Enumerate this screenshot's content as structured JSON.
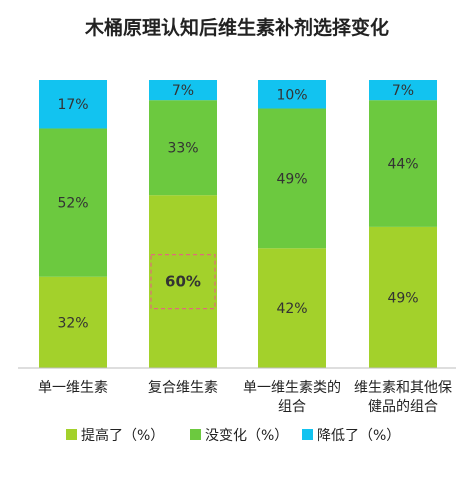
{
  "chart_data": {
    "type": "bar",
    "stacked": true,
    "percent": true,
    "title": "木桶原理认知后维生素补剂选择变化",
    "categories": [
      [
        "单一维生素"
      ],
      [
        "复合维生素"
      ],
      [
        "单一维生素类的",
        "组合"
      ],
      [
        "维生素和其他保",
        "健品的组合"
      ]
    ],
    "series": [
      {
        "name": "提高了（%）",
        "color": "#a3d12b",
        "values": [
          32,
          60,
          42,
          49
        ]
      },
      {
        "name": "没变化（%）",
        "color": "#6cc93f",
        "values": [
          52,
          33,
          49,
          44
        ]
      },
      {
        "name": "降低了（%）",
        "color": "#12c3f0",
        "values": [
          17,
          7,
          10,
          7
        ]
      }
    ],
    "ylim": [
      0,
      100
    ],
    "highlight": {
      "category_index": 1,
      "series_index": 0
    },
    "legend_position": "bottom"
  }
}
